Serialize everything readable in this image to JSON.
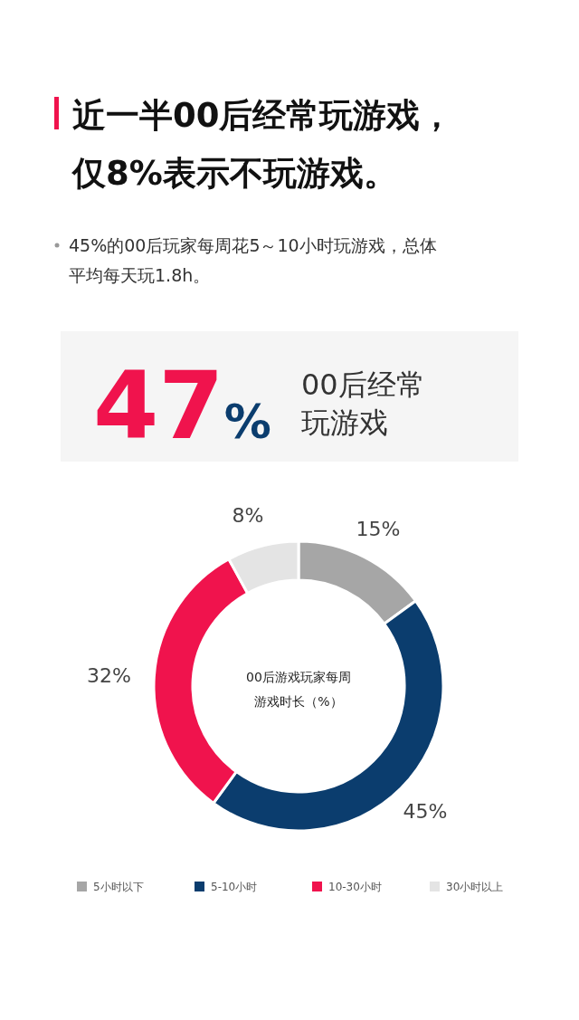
{
  "chart_data": {
    "type": "donut",
    "title": "近一半00后经常玩游戏，仅8%表示不玩游戏。",
    "subtitle": "45%的00后玩家每周花5～10小时玩游戏，总体平均每天玩1.8h。",
    "categories": [
      "5小时以下",
      "5-10小时",
      "10-30小时",
      "30小时以上"
    ],
    "values": [
      15,
      45,
      32,
      8
    ],
    "colors": [
      "#a6a6a6",
      "#0b3d6e",
      "#f0134d",
      "#e4e4e4"
    ],
    "value_labels": [
      "15%",
      "45%",
      "32%",
      "8%"
    ],
    "legend": "bottom",
    "annotations": [
      "47%",
      "00后经常玩游戏",
      "00后游戏玩家每周游戏时长（%）"
    ]
  }
}
